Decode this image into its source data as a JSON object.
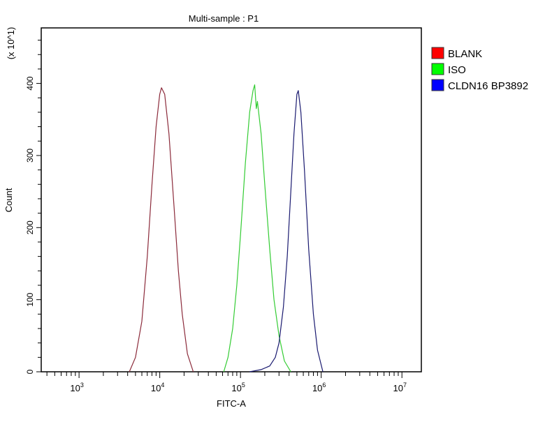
{
  "chart_data": {
    "type": "line",
    "title": "Multi-sample : P1",
    "xlabel": "FITC-A",
    "ylabel": "Count",
    "y_multiplier_label": "(x 10^1)",
    "x_scale": "log",
    "xlim": [
      340,
      17400000
    ],
    "ylim": [
      0,
      477
    ],
    "x_tick_labels": [
      {
        "value": 1000,
        "base": "10",
        "exp": "3"
      },
      {
        "value": 10000,
        "base": "10",
        "exp": "4"
      },
      {
        "value": 100000,
        "base": "10",
        "exp": "5"
      },
      {
        "value": 1000000,
        "base": "10",
        "exp": "6"
      },
      {
        "value": 10000000,
        "base": "10",
        "exp": "7"
      }
    ],
    "y_tick_labels": [
      0,
      100,
      200,
      300,
      400
    ],
    "y_minor_step": 20,
    "grid": false,
    "legend_position": "right",
    "series": [
      {
        "name": "BLANK",
        "color": "#8b2a3a",
        "swatch": "#ff0000",
        "points": [
          [
            4200,
            0
          ],
          [
            5000,
            20
          ],
          [
            6000,
            70
          ],
          [
            7000,
            160
          ],
          [
            8000,
            260
          ],
          [
            9000,
            340
          ],
          [
            10000,
            385
          ],
          [
            10500,
            394
          ],
          [
            11500,
            385
          ],
          [
            13000,
            330
          ],
          [
            15000,
            230
          ],
          [
            17000,
            140
          ],
          [
            19000,
            80
          ],
          [
            22000,
            25
          ],
          [
            26000,
            0
          ]
        ]
      },
      {
        "name": "ISO",
        "color": "#33cc33",
        "swatch": "#00ff00",
        "points": [
          [
            62000,
            0
          ],
          [
            70000,
            20
          ],
          [
            80000,
            60
          ],
          [
            90000,
            120
          ],
          [
            100000,
            190
          ],
          [
            115000,
            290
          ],
          [
            130000,
            360
          ],
          [
            143000,
            390
          ],
          [
            150000,
            398
          ],
          [
            157000,
            365
          ],
          [
            162000,
            375
          ],
          [
            180000,
            330
          ],
          [
            200000,
            260
          ],
          [
            230000,
            170
          ],
          [
            260000,
            100
          ],
          [
            300000,
            50
          ],
          [
            350000,
            15
          ],
          [
            420000,
            0
          ]
        ]
      },
      {
        "name": "CLDN16 BP3892",
        "color": "#1a1a70",
        "swatch": "#0000ff",
        "points": [
          [
            130000,
            0
          ],
          [
            180000,
            3
          ],
          [
            230000,
            8
          ],
          [
            270000,
            20
          ],
          [
            300000,
            40
          ],
          [
            340000,
            90
          ],
          [
            380000,
            160
          ],
          [
            420000,
            250
          ],
          [
            460000,
            330
          ],
          [
            500000,
            385
          ],
          [
            520000,
            390
          ],
          [
            560000,
            360
          ],
          [
            620000,
            280
          ],
          [
            700000,
            170
          ],
          [
            800000,
            80
          ],
          [
            900000,
            30
          ],
          [
            1050000,
            0
          ]
        ]
      }
    ]
  }
}
